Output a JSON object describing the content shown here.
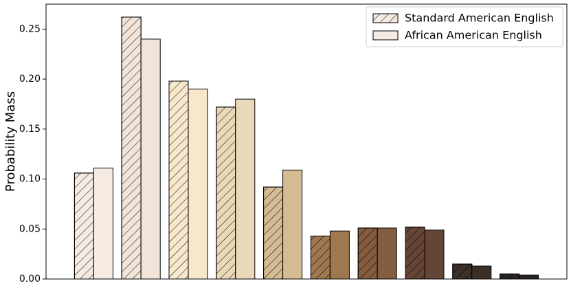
{
  "chart_data": {
    "type": "bar",
    "y_label": "Probability Mass",
    "categories": [
      null,
      null,
      null,
      null,
      null,
      null,
      null,
      null,
      null,
      null
    ],
    "colors": [
      "#f5ebe3",
      "#f2e4d8",
      "#f7e8cc",
      "#ead9b8",
      "#d6bb92",
      "#a07850",
      "#845c40",
      "#654535",
      "#3b2f28",
      "#2a2522"
    ],
    "series": [
      {
        "name": "Standard American English",
        "hatch": true,
        "values": [
          0.106,
          0.262,
          0.198,
          0.172,
          0.092,
          0.043,
          0.051,
          0.052,
          0.015,
          0.005
        ]
      },
      {
        "name": "African American English",
        "hatch": false,
        "values": [
          0.111,
          0.24,
          0.19,
          0.18,
          0.109,
          0.048,
          0.051,
          0.049,
          0.013,
          0.004
        ]
      }
    ],
    "ylim": [
      0,
      0.275
    ],
    "yticks": [
      {
        "value": 0,
        "label": "0.00"
      },
      {
        "value": 0.05,
        "label": "0.05"
      },
      {
        "value": 0.1,
        "label": "0.10"
      },
      {
        "value": 0.15,
        "label": "0.15"
      },
      {
        "value": 0.2,
        "label": "0.20"
      },
      {
        "value": 0.25,
        "label": "0.25"
      }
    ],
    "grid": false,
    "legend": "upper-right"
  }
}
